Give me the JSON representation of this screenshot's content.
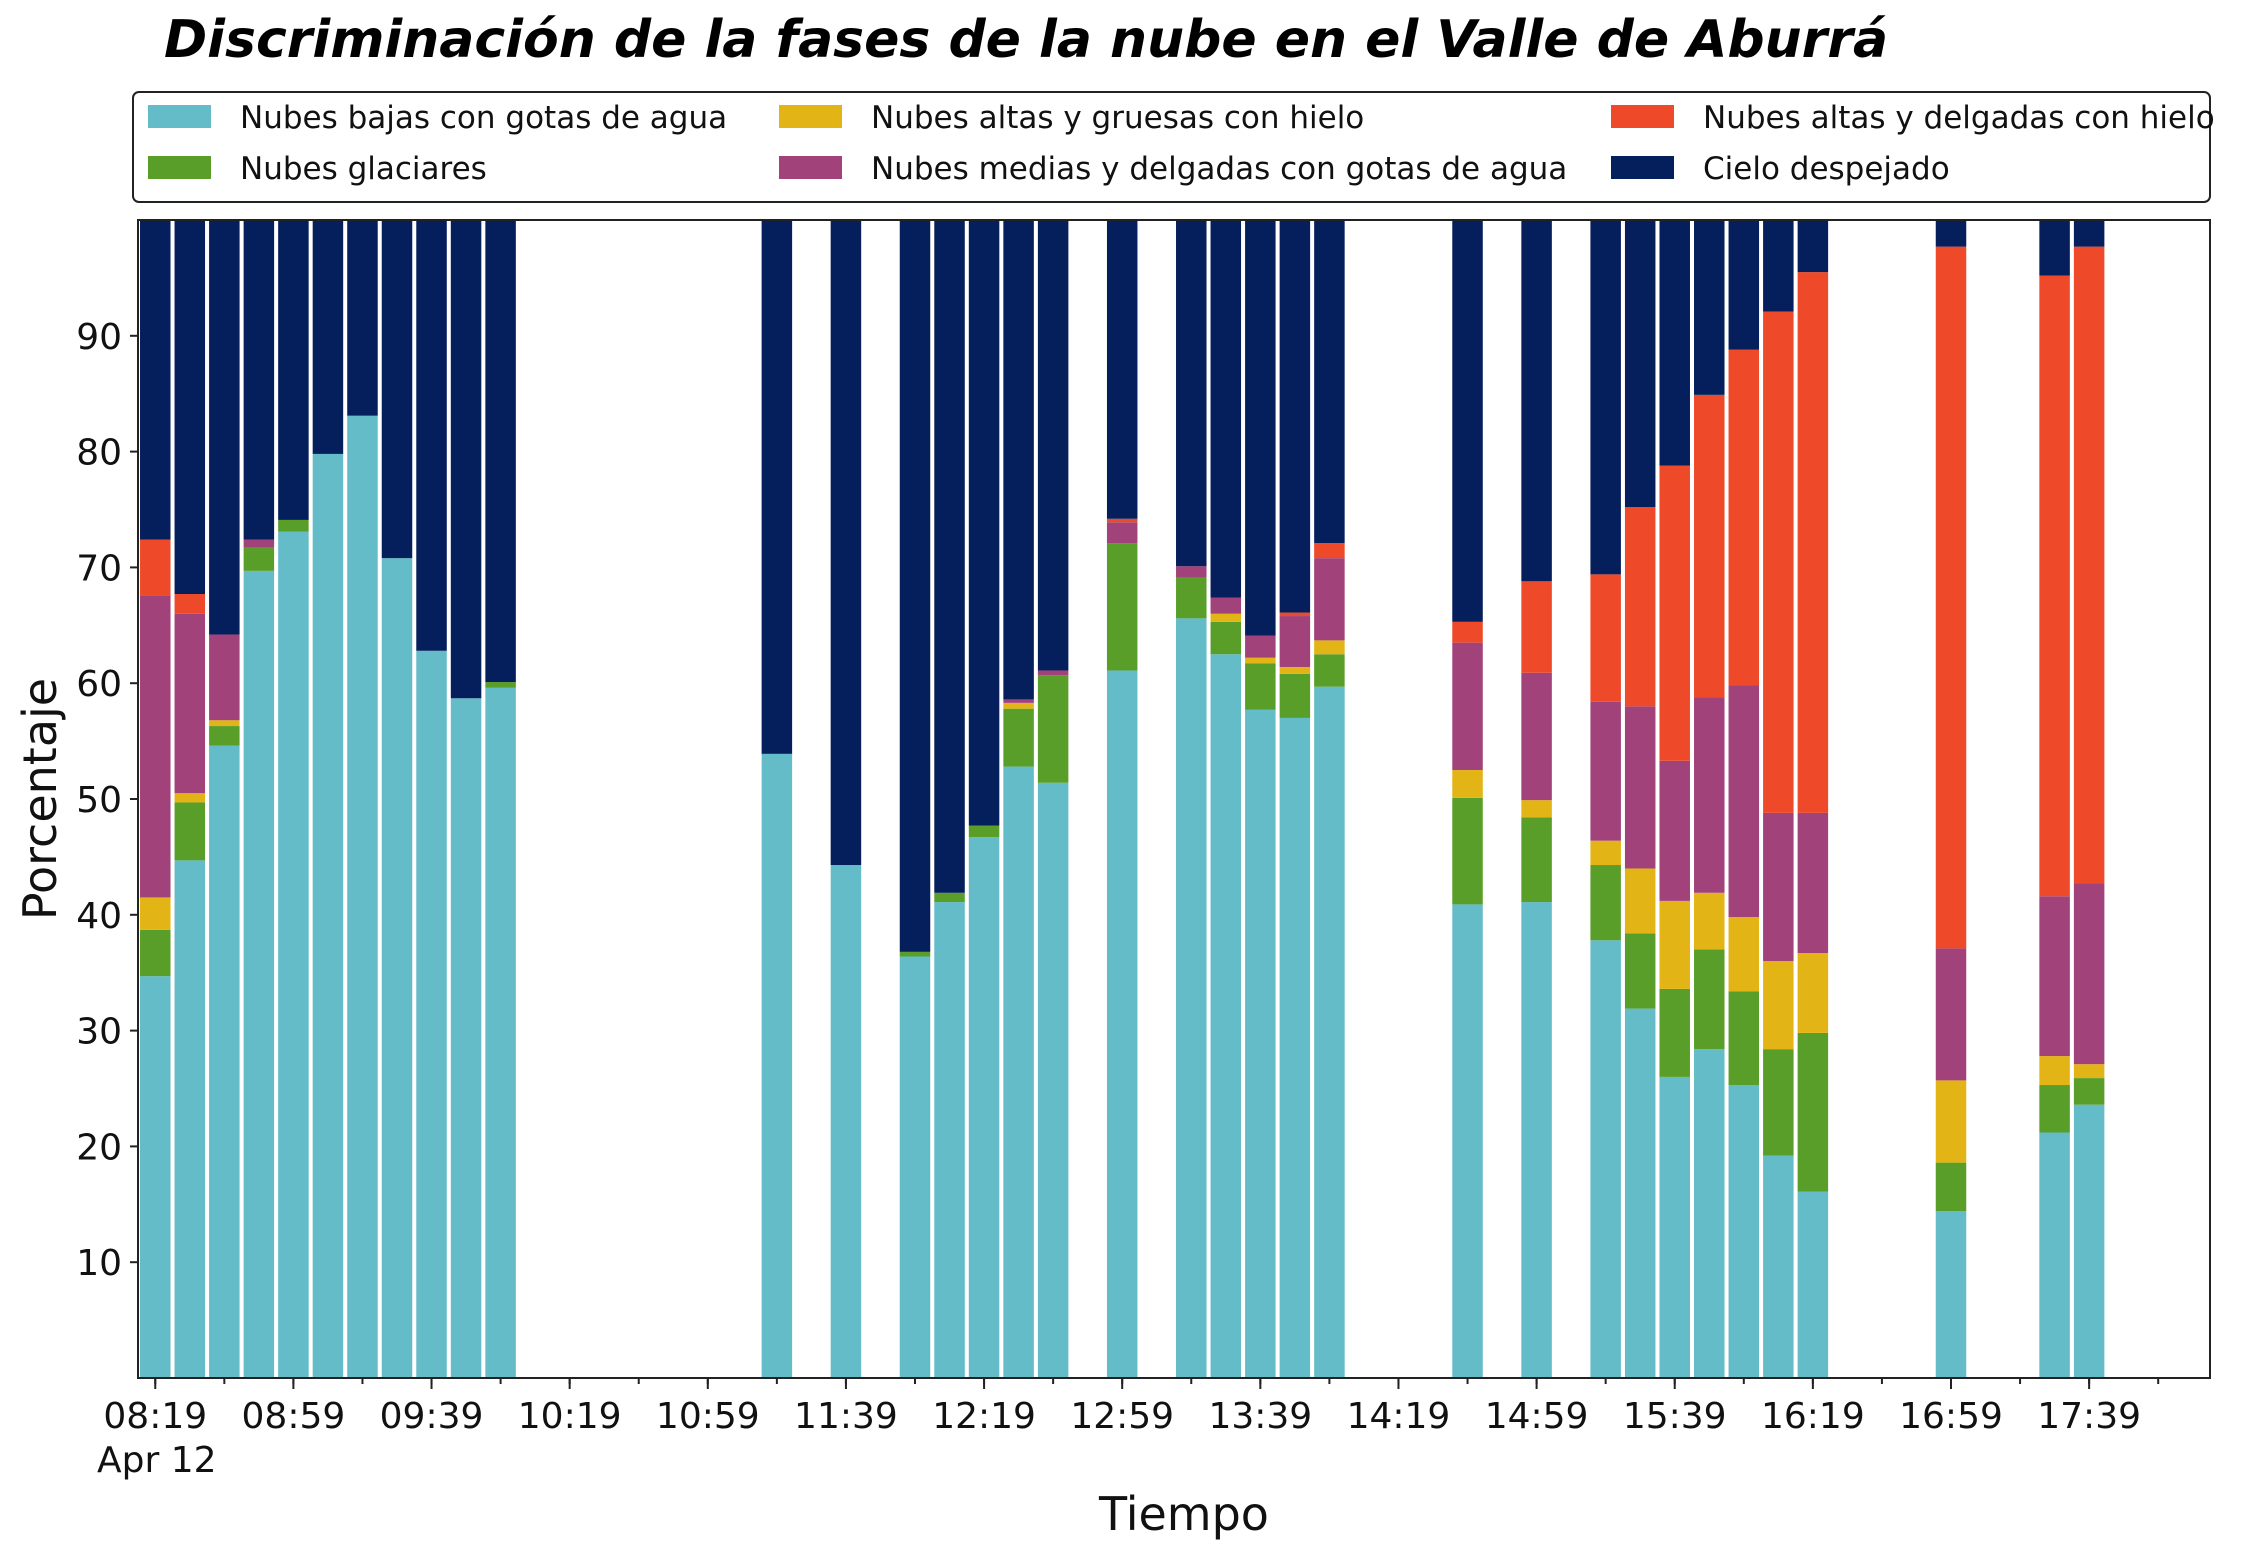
{
  "chart_data": {
    "type": "bar",
    "stacked": true,
    "title": "Discriminación de la fases de la nube en el Valle de Aburrá",
    "xlabel": "Tiempo",
    "ylabel": "Porcentaje",
    "ylim": [
      0,
      100
    ],
    "yticks": [
      10,
      20,
      30,
      40,
      50,
      60,
      70,
      80,
      90
    ],
    "xlim": [
      "08:14",
      "18:14"
    ],
    "x_tick_labels": [
      "08:19",
      "08:59",
      "09:39",
      "10:19",
      "10:59",
      "11:39",
      "12:19",
      "12:59",
      "13:39",
      "14:19",
      "14:59",
      "15:39",
      "16:19",
      "16:59",
      "17:39"
    ],
    "x_date_label": "Apr 12",
    "legend_position": "top",
    "x": [
      "08:19",
      "08:29",
      "08:39",
      "08:49",
      "08:59",
      "09:09",
      "09:19",
      "09:29",
      "09:39",
      "09:49",
      "09:59",
      "11:19",
      "11:39",
      "11:59",
      "12:09",
      "12:19",
      "12:29",
      "12:39",
      "12:59",
      "13:19",
      "13:29",
      "13:39",
      "13:49",
      "13:59",
      "14:39",
      "14:59",
      "15:19",
      "15:29",
      "15:39",
      "15:49",
      "15:59",
      "16:09",
      "16:19",
      "16:59",
      "17:29",
      "17:39"
    ],
    "series": [
      {
        "name": "Nubes bajas con gotas de agua",
        "color": "#64BCC8",
        "values": [
          34.7,
          44.7,
          54.6,
          69.7,
          73.1,
          79.8,
          83.1,
          70.8,
          62.8,
          58.7,
          59.6,
          53.9,
          44.3,
          36.4,
          41.1,
          46.7,
          52.8,
          51.4,
          61.1,
          65.6,
          62.5,
          57.7,
          57.0,
          59.7,
          40.9,
          41.1,
          37.8,
          31.9,
          26.0,
          28.4,
          25.3,
          19.2,
          16.1,
          14.4,
          21.2,
          23.6
        ]
      },
      {
        "name": "Nubes glaciares",
        "color": "#5A9E2A",
        "values": [
          4.0,
          5.0,
          1.7,
          2.0,
          1.0,
          0,
          0,
          0,
          0,
          0,
          0.5,
          0,
          0,
          0.4,
          0.8,
          1.0,
          5.0,
          9.3,
          11.0,
          3.5,
          2.8,
          4.0,
          3.8,
          2.8,
          9.2,
          7.3,
          6.5,
          6.5,
          7.6,
          8.6,
          8.1,
          9.2,
          13.7,
          4.2,
          4.1,
          2.3
        ]
      },
      {
        "name": "Nubes altas y gruesas con hielo",
        "color": "#E3B416",
        "values": [
          2.8,
          0.8,
          0.5,
          0,
          0,
          0,
          0,
          0,
          0,
          0,
          0,
          0,
          0,
          0,
          0,
          0,
          0.5,
          0,
          0,
          0,
          0.7,
          0.5,
          0.6,
          1.2,
          2.4,
          1.5,
          2.1,
          5.6,
          7.6,
          4.9,
          6.4,
          7.6,
          6.9,
          7.1,
          2.5,
          1.2
        ]
      },
      {
        "name": "Nubes medias y delgadas con gotas de agua",
        "color": "#A1437A",
        "values": [
          26.1,
          15.5,
          7.4,
          0.7,
          0,
          0,
          0,
          0,
          0,
          0,
          0,
          0,
          0,
          0,
          0,
          0,
          0.3,
          0.4,
          1.8,
          1.0,
          1.4,
          1.9,
          4.4,
          7.1,
          11.0,
          11.0,
          12.0,
          14.0,
          12.1,
          16.9,
          20.0,
          12.8,
          12.1,
          11.4,
          13.8,
          15.6
        ]
      },
      {
        "name": "Nubes altas y delgadas con hielo",
        "color": "#EE4A2A",
        "values": [
          4.8,
          1.7,
          0,
          0,
          0,
          0,
          0,
          0,
          0,
          0,
          0,
          0,
          0,
          0,
          0,
          0,
          0,
          0,
          0.3,
          0,
          0,
          0,
          0.3,
          1.3,
          1.8,
          7.9,
          11.0,
          17.2,
          25.5,
          26.1,
          29.0,
          43.3,
          46.7,
          60.6,
          53.6,
          55.0
        ]
      },
      {
        "name": "Cielo despejado",
        "color": "#051E5C",
        "values": [
          27.6,
          32.3,
          35.8,
          27.6,
          25.9,
          20.2,
          16.9,
          29.2,
          37.2,
          41.3,
          39.9,
          46.1,
          55.7,
          63.2,
          58.1,
          52.3,
          41.4,
          38.9,
          25.8,
          29.9,
          32.6,
          35.9,
          33.9,
          27.9,
          34.7,
          31.2,
          30.6,
          24.8,
          21.2,
          15.1,
          11.2,
          7.9,
          4.5,
          2.3,
          4.8,
          2.3
        ]
      }
    ]
  }
}
